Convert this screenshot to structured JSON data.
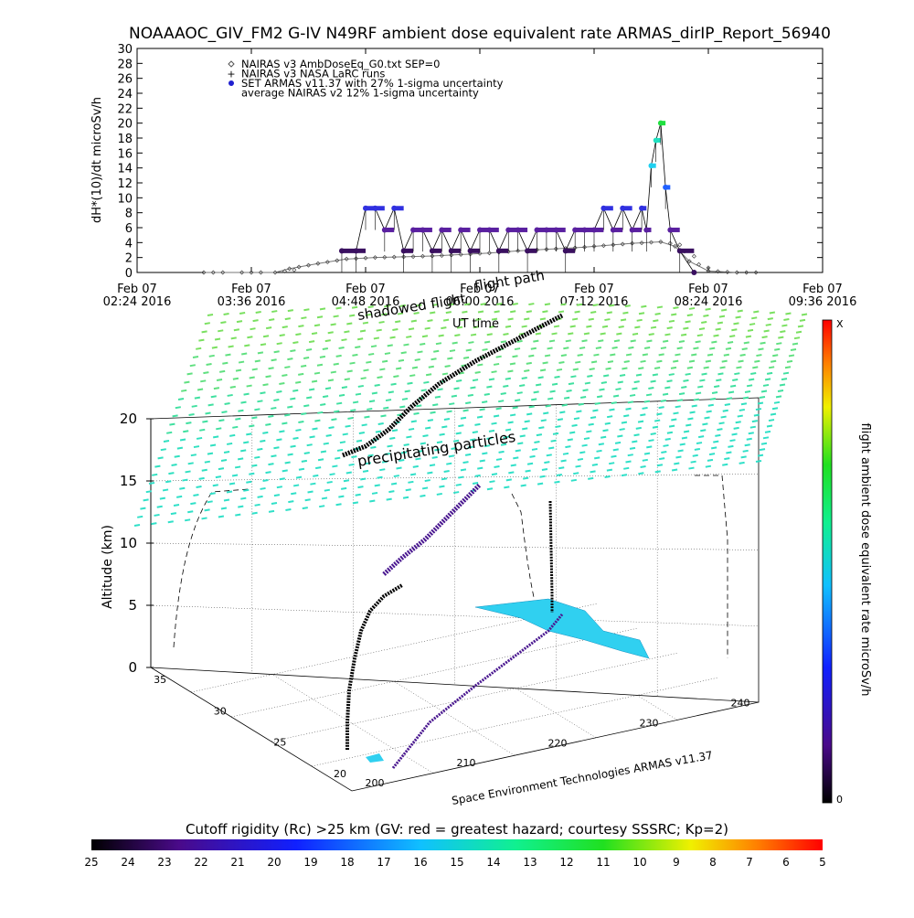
{
  "title": "NOAAAOC_GIV_FM2 G-IV   N49RF  ambient dose equivalent rate ARMAS_dirIP_Report_56940",
  "chart_data": [
    {
      "type": "line",
      "panel": "dose-timeseries",
      "ylabel": "dH*(10)/dt microSv/h",
      "xlabel": "UT time",
      "ylim": [
        0,
        30
      ],
      "yticks": [
        "0",
        "2",
        "4",
        "6",
        "8",
        "10",
        "12",
        "14",
        "16",
        "18",
        "20",
        "22",
        "24",
        "26",
        "28",
        "30"
      ],
      "xlim_hours": [
        2.4,
        9.6
      ],
      "xticks": [
        {
          "line1": "Feb 07",
          "line2": "02:24 2016"
        },
        {
          "line1": "Feb 07",
          "line2": "03:36 2016"
        },
        {
          "line1": "Feb 07",
          "line2": "04:48 2016"
        },
        {
          "line1": "Feb 07",
          "line2": "06:00 2016"
        },
        {
          "line1": "Feb 07",
          "line2": "07:12 2016"
        },
        {
          "line1": "Feb 07",
          "line2": "08:24 2016"
        },
        {
          "line1": "Feb 07",
          "line2": "09:36 2016"
        }
      ],
      "legend": [
        {
          "symbol": "diamond",
          "text": "NAIRAS v3 AmbDoseEq_G0.txt SEP=0"
        },
        {
          "symbol": "plus",
          "text": "NAIRAS v3 NASA LaRC runs"
        },
        {
          "symbol": "dot",
          "text": "SET ARMAS v11.37 with 27% 1-sigma uncertainty"
        },
        {
          "symbol": "none",
          "text": "average NAIRAS v2 12% 1-sigma uncertainty"
        }
      ],
      "series": [
        {
          "name": "NAIRAS v3 AmbDoseEq_G0.txt SEP=0",
          "x": [
            3.1,
            3.5,
            3.85,
            4.0,
            4.3,
            4.6,
            4.9,
            5.2,
            5.5,
            5.8,
            6.1,
            6.4,
            6.7,
            7.0,
            7.3,
            7.6,
            7.9,
            8.05,
            8.2,
            8.4,
            8.7
          ],
          "y": [
            0,
            0,
            0,
            0.5,
            1.2,
            1.8,
            2.0,
            2.1,
            2.2,
            2.4,
            2.6,
            2.9,
            3.1,
            3.3,
            3.6,
            3.9,
            4.1,
            3.5,
            1.5,
            0.2,
            0
          ]
        },
        {
          "name": "SET ARMAS v11.37 with 27% 1-sigma uncertainty",
          "x": [
            4.55,
            4.7,
            4.8,
            4.9,
            5.0,
            5.1,
            5.2,
            5.3,
            5.4,
            5.5,
            5.6,
            5.7,
            5.8,
            5.9,
            6.0,
            6.1,
            6.2,
            6.3,
            6.4,
            6.5,
            6.6,
            6.7,
            6.8,
            6.9,
            7.0,
            7.1,
            7.2,
            7.3,
            7.4,
            7.5,
            7.6,
            7.7,
            7.75,
            7.8,
            7.85,
            7.9,
            7.95,
            8.0,
            8.1,
            8.25
          ],
          "y": [
            2.9,
            2.9,
            8.6,
            8.6,
            5.7,
            8.6,
            2.9,
            5.7,
            5.7,
            2.9,
            5.7,
            2.9,
            5.7,
            2.9,
            5.7,
            5.7,
            2.9,
            5.7,
            5.7,
            2.9,
            5.7,
            5.7,
            5.7,
            2.9,
            5.7,
            5.7,
            5.7,
            8.6,
            5.7,
            8.6,
            5.7,
            8.6,
            5.7,
            14.3,
            17.7,
            20.0,
            11.4,
            5.7,
            2.9,
            0
          ]
        }
      ]
    },
    {
      "type": "scatter",
      "panel": "flight-3d",
      "zlabel": "Altitude (km)",
      "zticks": [
        "0",
        "5",
        "10",
        "15",
        "20"
      ],
      "lon_ticks": [
        "200",
        "210",
        "220",
        "230",
        "240"
      ],
      "lat_ticks": [
        "20",
        "25",
        "30",
        "35"
      ],
      "annotations": [
        "flight path",
        "shadowed flight",
        "UT time",
        "precipitating particles"
      ],
      "footer": "Space Environment Technologies ARMAS v11.37",
      "colorbar_label": "flight ambient dose equivalent rate microSv/h",
      "colorbar_top": "X",
      "colorbar_bottom": "0"
    }
  ],
  "cutoff": {
    "label": "Cutoff rigidity (Rc) >25 km (GV: red = greatest hazard; courtesy SSSRC; Kp=2)",
    "ticks": [
      "25",
      "24",
      "23",
      "22",
      "21",
      "20",
      "19",
      "18",
      "17",
      "16",
      "15",
      "14",
      "13",
      "12",
      "11",
      "10",
      "9",
      "8",
      "7",
      "6",
      "5"
    ]
  },
  "colors": {
    "armas_low": "#3a1060",
    "armas_mid": "#3030e0",
    "armas_peak": "#30e060",
    "nairas": "#777777",
    "grid_particles": "#40e0a0",
    "cutoff_map": "#30d0f0"
  }
}
